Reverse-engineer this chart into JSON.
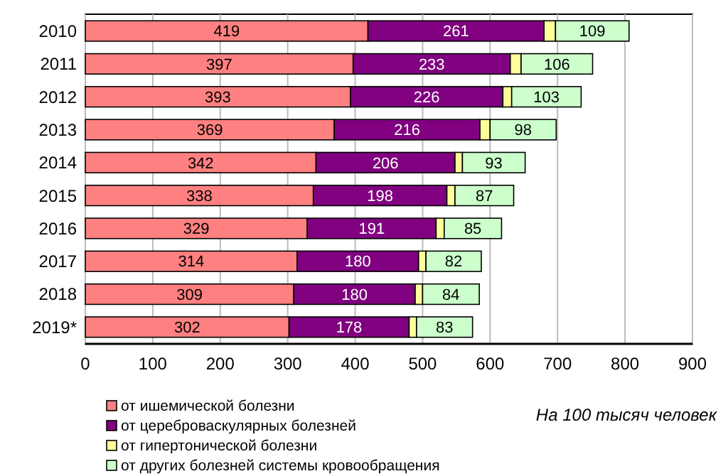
{
  "chart_data": {
    "type": "bar",
    "orientation": "horizontal",
    "stacked": true,
    "categories": [
      "2010",
      "2011",
      "2012",
      "2013",
      "2014",
      "2015",
      "2016",
      "2017",
      "2018",
      "2019*"
    ],
    "series": [
      {
        "name": "от ишемической болезни",
        "color": "#ff8080",
        "values": [
          419,
          397,
          393,
          369,
          342,
          338,
          329,
          314,
          309,
          302
        ],
        "value_labels": [
          "419",
          "397",
          "393",
          "369",
          "342",
          "338",
          "329",
          "314",
          "309",
          "302"
        ]
      },
      {
        "name": "от цереброваскулярных болезней",
        "color": "#800080",
        "values": [
          261,
          233,
          226,
          216,
          206,
          198,
          191,
          180,
          180,
          178
        ],
        "value_labels": [
          "261",
          "233",
          "226",
          "216",
          "206",
          "198",
          "191",
          "180",
          "180",
          "178"
        ]
      },
      {
        "name": "от гипертонической болезни",
        "color": "#ffff99",
        "values": [
          17,
          16,
          13,
          15,
          11,
          12,
          12,
          11,
          11,
          11
        ]
      },
      {
        "name": "от других болезней  системы кровообращения",
        "color": "#ccffcc",
        "values": [
          109,
          106,
          103,
          98,
          93,
          87,
          85,
          82,
          84,
          83
        ],
        "value_labels": [
          "109",
          "106",
          "103",
          "98",
          "93",
          "87",
          "85",
          "82",
          "84",
          "83"
        ]
      }
    ],
    "xlim": [
      0,
      900
    ],
    "xticks": [
      0,
      100,
      200,
      300,
      400,
      500,
      600,
      700,
      800,
      900
    ],
    "grid": "x",
    "legend": "bottom left",
    "annotations": [
      "На 100 тысяч человек"
    ]
  }
}
